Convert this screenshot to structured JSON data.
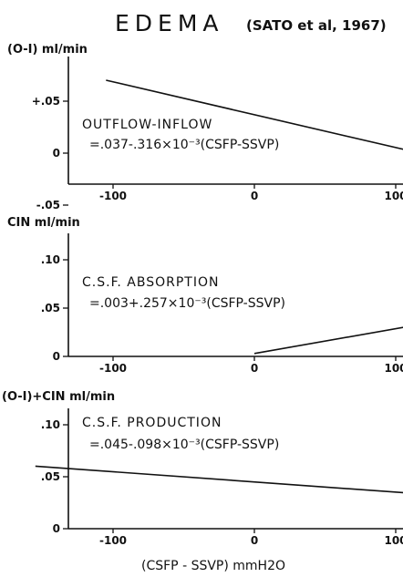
{
  "figure": {
    "title": "EDEMA",
    "citation": "(SATO et al, 1967)",
    "xlabel": "(CSFP - SSVP) mmH2O"
  },
  "chart_data": [
    {
      "type": "line",
      "id": "outflow-inflow",
      "ylabel": "(O-I) ml/min",
      "annotation_title": "OUTFLOW-INFLOW",
      "annotation_equation": "=.037-.316×10⁻³(CSFP-SSVP)",
      "ylim": [
        -0.05,
        0.07
      ],
      "xlim": [
        -160,
        160
      ],
      "y_ticks": [
        {
          "value": 0.05,
          "label": "+.05"
        },
        {
          "value": 0.0,
          "label": "0"
        },
        {
          "value": -0.05,
          "label": "-.05"
        }
      ],
      "x_ticks": [
        {
          "value": -100,
          "label": "-100"
        },
        {
          "value": 0,
          "label": "0"
        },
        {
          "value": 100,
          "label": "100"
        }
      ],
      "series": [
        {
          "x": [
            -105,
            160
          ],
          "y": [
            0.0702,
            -0.0136
          ]
        }
      ]
    },
    {
      "type": "line",
      "id": "csf-absorption",
      "ylabel": "CIN ml/min",
      "annotation_title": "C.S.F. ABSORPTION",
      "annotation_equation": "=.003+.257×10⁻³(CSFP-SSVP)",
      "ylim": [
        0,
        0.11
      ],
      "xlim": [
        -160,
        160
      ],
      "y_ticks": [
        {
          "value": 0.1,
          "label": ".10"
        },
        {
          "value": 0.05,
          "label": ".05"
        },
        {
          "value": 0.0,
          "label": "0"
        }
      ],
      "x_ticks": [
        {
          "value": -100,
          "label": "-100"
        },
        {
          "value": 0,
          "label": "0"
        },
        {
          "value": 100,
          "label": "100"
        }
      ],
      "series": [
        {
          "x": [
            0,
            160
          ],
          "y": [
            0.003,
            0.0441
          ]
        }
      ]
    },
    {
      "type": "line",
      "id": "csf-production",
      "ylabel": "(O-I)+CIN ml/min",
      "annotation_title": "C.S.F. PRODUCTION",
      "annotation_equation": "=.045-.098×10⁻³(CSFP-SSVP)",
      "ylim": [
        0,
        0.105
      ],
      "xlim": [
        -160,
        160
      ],
      "y_ticks": [
        {
          "value": 0.1,
          "label": ".10"
        },
        {
          "value": 0.05,
          "label": ".05"
        },
        {
          "value": 0.0,
          "label": "0"
        }
      ],
      "x_ticks": [
        {
          "value": -100,
          "label": "-100"
        },
        {
          "value": 0,
          "label": "0"
        },
        {
          "value": 100,
          "label": "100"
        }
      ],
      "series": [
        {
          "x": [
            -155,
            160
          ],
          "y": [
            0.0602,
            0.0293
          ]
        }
      ]
    }
  ]
}
